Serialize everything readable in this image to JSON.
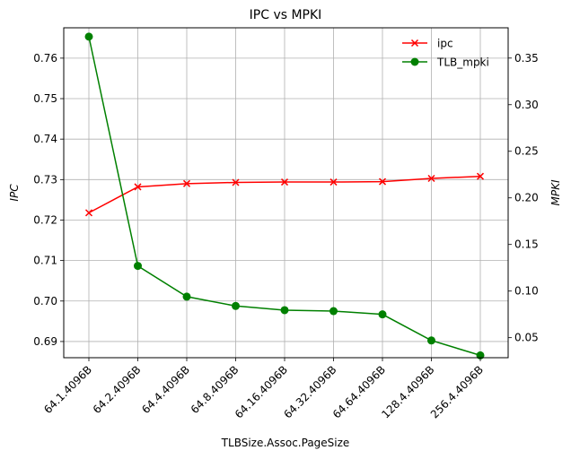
{
  "chart_data": {
    "type": "line",
    "title": "IPC vs MPKI",
    "xlabel": "TLBSize.Assoc.PageSize",
    "ylabel_left": "IPC",
    "ylabel_right": "MPKI",
    "categories": [
      "64.1.4096B",
      "64.2.4096B",
      "64.4.4096B",
      "64.8.4096B",
      "64.16.4096B",
      "64.32.4096B",
      "64.64.4096B",
      "128.4.4096B",
      "256.4.4096B"
    ],
    "series": [
      {
        "name": "ipc",
        "axis": "left",
        "color": "#ff0000",
        "marker": "x",
        "values": [
          0.7218,
          0.7282,
          0.729,
          0.7293,
          0.7294,
          0.7294,
          0.7295,
          0.7303,
          0.7308
        ]
      },
      {
        "name": "TLB_mpki",
        "axis": "right",
        "color": "#008000",
        "marker": "circle",
        "values": [
          0.373,
          0.127,
          0.094,
          0.084,
          0.0795,
          0.0785,
          0.075,
          0.047,
          0.031
        ]
      }
    ],
    "ylim_left": [
      0.686,
      0.7675
    ],
    "ylim_right": [
      0.0285,
      0.3825
    ],
    "yticks_left": [
      "0.69",
      "0.70",
      "0.71",
      "0.72",
      "0.73",
      "0.74",
      "0.75",
      "0.76"
    ],
    "yticks_right": [
      "0.05",
      "0.10",
      "0.15",
      "0.20",
      "0.25",
      "0.30",
      "0.35"
    ],
    "grid": true,
    "legend": "top-right"
  }
}
